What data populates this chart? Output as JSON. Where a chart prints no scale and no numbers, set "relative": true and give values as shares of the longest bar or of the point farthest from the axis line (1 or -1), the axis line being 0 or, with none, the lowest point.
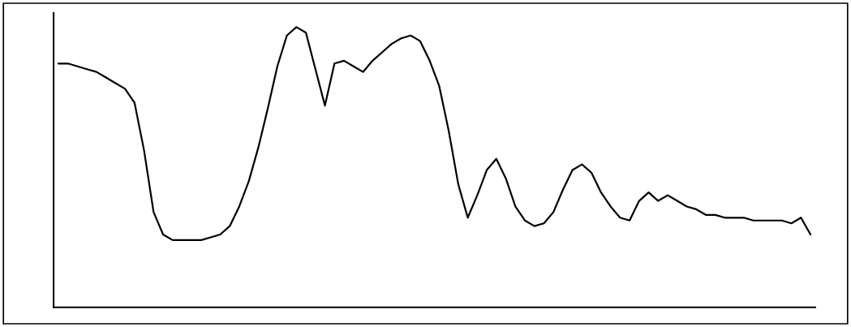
{
  "chart_data": {
    "type": "line",
    "relative": true,
    "grid": false,
    "marker": "none",
    "line_style": "solid",
    "categories": [
      null,
      null,
      null,
      null,
      null,
      null,
      null,
      null,
      null,
      null,
      null,
      null,
      null,
      null,
      null,
      null,
      null,
      null,
      null,
      null,
      null,
      null,
      null,
      null,
      null,
      null,
      null,
      null,
      null,
      null,
      null,
      null,
      null,
      null,
      null,
      null,
      null,
      null,
      null,
      null,
      null,
      null,
      null,
      null,
      null,
      null,
      null,
      null,
      null,
      null,
      null,
      null,
      null,
      null,
      null,
      null,
      null,
      null,
      null,
      null,
      null,
      null,
      null,
      null,
      null,
      null,
      null,
      null,
      null,
      null,
      null,
      null,
      null,
      null,
      null,
      null,
      null,
      null,
      null,
      null
    ],
    "series": [
      {
        "color": "#000000",
        "values": [
          0.87,
          0.87,
          0.86,
          0.85,
          0.84,
          0.82,
          0.8,
          0.78,
          0.73,
          0.56,
          0.34,
          0.26,
          0.24,
          0.24,
          0.24,
          0.24,
          0.25,
          0.26,
          0.29,
          0.36,
          0.45,
          0.57,
          0.71,
          0.86,
          0.97,
          1.0,
          0.98,
          0.85,
          0.72,
          0.87,
          0.88,
          0.86,
          0.84,
          0.88,
          0.91,
          0.94,
          0.96,
          0.97,
          0.95,
          0.88,
          0.79,
          0.63,
          0.44,
          0.32,
          0.4,
          0.49,
          0.53,
          0.46,
          0.36,
          0.31,
          0.29,
          0.3,
          0.34,
          0.42,
          0.49,
          0.51,
          0.48,
          0.41,
          0.36,
          0.32,
          0.31,
          0.38,
          0.41,
          0.38,
          0.4,
          0.38,
          0.36,
          0.35,
          0.33,
          0.33,
          0.32,
          0.32,
          0.32,
          0.31,
          0.31,
          0.31,
          0.31,
          0.3,
          0.32,
          0.26
        ]
      }
    ]
  }
}
